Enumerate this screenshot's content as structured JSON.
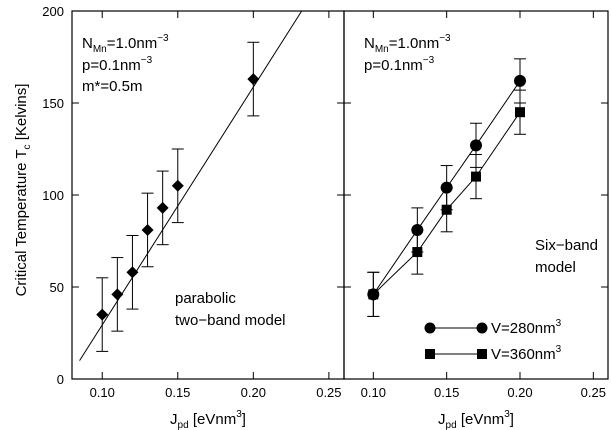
{
  "chart_data": [
    {
      "type": "line",
      "panel": "left",
      "xlim": [
        0.08,
        0.26
      ],
      "ylim": [
        0,
        200
      ],
      "xticks": [
        "0.10",
        "0.15",
        "0.20",
        "0.25"
      ],
      "yticks": [
        "0",
        "50",
        "100",
        "150",
        "200"
      ],
      "ylabel_main": "Critical Temperature T",
      "ylabel_sub": "c",
      "ylabel_tail": " [Kelvins]",
      "xlabel_main": "J",
      "xlabel_sub": "pd",
      "xlabel_tail": " [eVnm",
      "xlabel_sup": "3",
      "xlabel_end": "]",
      "annotations": [
        {
          "main": "N",
          "sub": "Mn",
          "rest": "=1.0nm",
          "sup": "−3"
        },
        {
          "main": "p=0.1nm",
          "sup": "−3"
        },
        {
          "main": "m*=0.5m"
        }
      ],
      "model_label": [
        "parabolic",
        "two−band model"
      ],
      "fit_line": {
        "x": [
          0.085,
          0.232
        ],
        "y": [
          10,
          200
        ]
      },
      "series": [
        {
          "marker": "diamond",
          "x": [
            0.1,
            0.11,
            0.12,
            0.13,
            0.14,
            0.15,
            0.2
          ],
          "y": [
            35,
            46,
            58,
            81,
            93,
            105,
            163
          ],
          "err": [
            20,
            20,
            20,
            20,
            20,
            20,
            20
          ]
        }
      ]
    },
    {
      "type": "line",
      "panel": "right",
      "xlim": [
        0.08,
        0.26
      ],
      "ylim": [
        0,
        200
      ],
      "xticks": [
        "0.10",
        "0.15",
        "0.20",
        "0.25"
      ],
      "xlabel_main": "J",
      "xlabel_sub": "pd",
      "xlabel_tail": " [eVnm",
      "xlabel_sup": "3",
      "xlabel_end": "]",
      "annotations": [
        {
          "main": "N",
          "sub": "Mn",
          "rest": "=1.0nm",
          "sup": "−3"
        },
        {
          "main": "p=0.1nm",
          "sup": "−3"
        }
      ],
      "model_label": [
        "Six−band",
        "model"
      ],
      "series": [
        {
          "name": "V=280nm",
          "name_sup": "3",
          "marker": "circle",
          "x": [
            0.1,
            0.13,
            0.15,
            0.17,
            0.2
          ],
          "y": [
            46,
            81,
            104,
            127,
            162
          ],
          "err": [
            12,
            12,
            12,
            12,
            12
          ]
        },
        {
          "name": "V=360nm",
          "name_sup": "3",
          "marker": "square",
          "x": [
            0.1,
            0.13,
            0.15,
            0.17,
            0.2
          ],
          "y": [
            46,
            69,
            92,
            110,
            145
          ],
          "err": [
            12,
            12,
            12,
            12,
            12
          ]
        }
      ]
    }
  ]
}
